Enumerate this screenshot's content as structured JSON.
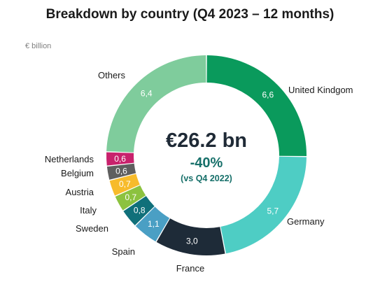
{
  "header": {
    "title": "Breakdown by country (Q4 2023 – 12 months)",
    "unit_label": "€ billion"
  },
  "center": {
    "total": "€26.2 bn",
    "change": "-40%",
    "reference": "(vs Q4 2022)"
  },
  "chart_data": {
    "type": "pie",
    "variant": "donut",
    "title": "Breakdown by country (Q4 2023 – 12 months)",
    "unit": "€ billion",
    "slices": [
      {
        "label": "United Kindgom",
        "value": 6.6,
        "display": "6,6",
        "color": "#0a9a5c"
      },
      {
        "label": "Germany",
        "value": 5.7,
        "display": "5,7",
        "color": "#4ecdc4"
      },
      {
        "label": "France",
        "value": 3.0,
        "display": "3,0",
        "color": "#1e2b38"
      },
      {
        "label": "Spain",
        "value": 1.1,
        "display": "1,1",
        "color": "#4a9fc4"
      },
      {
        "label": "Sweden",
        "value": 0.8,
        "display": "0,8",
        "color": "#10707a"
      },
      {
        "label": "Italy",
        "value": 0.7,
        "display": "0,7",
        "color": "#8cc23f"
      },
      {
        "label": "Austria",
        "value": 0.7,
        "display": "0,7",
        "color": "#f7bb2b"
      },
      {
        "label": "Belgium",
        "value": 0.6,
        "display": "0,6",
        "color": "#5f5f5f"
      },
      {
        "label": "Netherlands",
        "value": 0.6,
        "display": "0,6",
        "color": "#c8216c"
      },
      {
        "label": "Others",
        "value": 6.4,
        "display": "6,4",
        "color": "#7fcc9c"
      }
    ]
  }
}
